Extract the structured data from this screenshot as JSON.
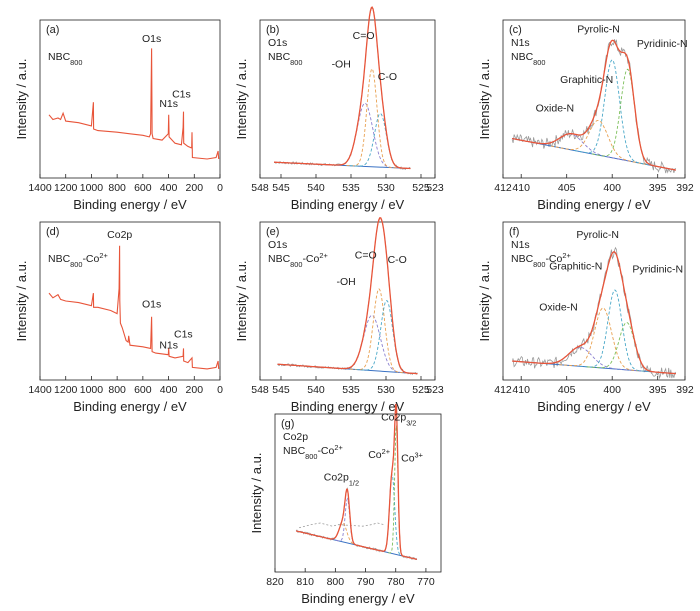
{
  "colors": {
    "survey": "#e8553a",
    "envelope": "#e8553a",
    "baseline": "#3a72c4",
    "raw": "#9a9a9a",
    "peak_palette": [
      "#8a7fd0",
      "#e8a050",
      "#4aa8c8",
      "#7cbf5a",
      "#d46fb0"
    ]
  },
  "common": {
    "ylabel": "Intensity / a.u.",
    "xlabel": "Binding energy / eV"
  },
  "chart_data": [
    {
      "id": "a",
      "type": "line",
      "panel_label": "(a)",
      "sample_text": "NBC",
      "sample_sub": "800",
      "sample_sup": "",
      "xlabel": "Binding energy / eV",
      "ylabel": "Intensity / a.u.",
      "xlim": [
        1400,
        0
      ],
      "ylim": [
        0,
        100
      ],
      "xticks": [
        1400,
        1200,
        1000,
        800,
        600,
        400,
        200,
        0
      ],
      "series": [
        {
          "x": [
            1330,
            1300,
            1260,
            1240,
            1220,
            1200,
            1100,
            1000,
            985,
            983,
            950,
            800,
            700,
            600,
            550,
            540,
            532,
            529,
            528,
            520,
            450,
            402,
            399,
            396,
            350,
            300,
            287,
            284,
            282,
            250,
            220,
            218,
            215,
            100,
            30,
            15,
            10
          ],
          "y": [
            40,
            37,
            38,
            37,
            41,
            36,
            35,
            33,
            48,
            31,
            30,
            29,
            28,
            27,
            26,
            28,
            82,
            40,
            28,
            25,
            24,
            28,
            40,
            26,
            22,
            21,
            32,
            42,
            22,
            20,
            19,
            29,
            13,
            12,
            13,
            17,
            12
          ]
        }
      ],
      "annotations": [
        {
          "text": "O1s",
          "x": 532,
          "y": 86
        },
        {
          "text": "N1s",
          "x": 399,
          "y": 45
        },
        {
          "text": "C1s",
          "x": 300,
          "y": 51
        }
      ]
    },
    {
      "id": "b",
      "type": "line",
      "panel_label": "(b)",
      "element_text": "O1s",
      "sample_text": "NBC",
      "sample_sub": "800",
      "sample_sup": "",
      "xlabel": "Binding energy / eV",
      "ylabel": "Intensity / a.u.",
      "xlim": [
        548,
        523
      ],
      "ylim": [
        0,
        100
      ],
      "xticks": [
        548,
        545,
        540,
        535,
        530,
        525,
        523
      ],
      "baseline": {
        "x": [
          546,
          526.5
        ],
        "y": [
          10,
          6
        ]
      },
      "fitted_peaks": [
        {
          "name": "-OH",
          "center": 533.0,
          "fwhm": 2.6,
          "height": 40
        },
        {
          "name": "C=O",
          "center": 532.0,
          "fwhm": 1.7,
          "height": 62
        },
        {
          "name": "C-O",
          "center": 530.8,
          "fwhm": 2.0,
          "height": 34
        }
      ],
      "xrange": [
        546,
        526.5
      ],
      "annotations": [
        {
          "text": "C=O",
          "x": 533.2,
          "y": 88
        },
        {
          "text": "-OH",
          "x": 536.4,
          "y": 70
        },
        {
          "text": "C-O",
          "x": 529.8,
          "y": 62
        }
      ]
    },
    {
      "id": "c",
      "type": "line",
      "panel_label": "(c)",
      "element_text": "N1s",
      "sample_text": "NBC",
      "sample_sub": "800",
      "sample_sup": "",
      "xlabel": "Binding energy / eV",
      "ylabel": "Intensity / a.u.",
      "xlim": [
        412,
        392
      ],
      "ylim": [
        0,
        100
      ],
      "xticks": [
        412,
        410,
        405,
        400,
        395,
        392
      ],
      "baseline": {
        "x": [
          411,
          393
        ],
        "y": [
          25,
          5
        ]
      },
      "fitted_peaks": [
        {
          "name": "Oxide-N",
          "center": 404.5,
          "fwhm": 3.0,
          "height": 10
        },
        {
          "name": "Graphitic-N",
          "center": 401.5,
          "fwhm": 2.4,
          "height": 22
        },
        {
          "name": "Pyrolic-N",
          "center": 400.0,
          "fwhm": 1.9,
          "height": 62
        },
        {
          "name": "Pyridinic-N",
          "center": 398.3,
          "fwhm": 1.8,
          "height": 58
        }
      ],
      "xrange": [
        411,
        393
      ],
      "noisy_raw": true,
      "annotations": [
        {
          "text": "Pyrolic-N",
          "x": 401.5,
          "y": 92
        },
        {
          "text": "Pyridinic-N",
          "x": 394.5,
          "y": 83
        },
        {
          "text": "Graphitic-N",
          "x": 402.8,
          "y": 60
        },
        {
          "text": "Oxide-N",
          "x": 406.3,
          "y": 42
        }
      ]
    },
    {
      "id": "d",
      "type": "line",
      "panel_label": "(d)",
      "sample_text": "NBC",
      "sample_sub": "800",
      "sample_sup": "-Co",
      "sample_sup2": "2+",
      "xlabel": "Binding energy / eV",
      "ylabel": "Intensity / a.u.",
      "xlim": [
        1400,
        0
      ],
      "ylim": [
        0,
        100
      ],
      "xticks": [
        1400,
        1200,
        1000,
        800,
        600,
        400,
        200,
        0
      ],
      "series": [
        {
          "x": [
            1330,
            1300,
            1260,
            1240,
            1200,
            1100,
            1000,
            985,
            983,
            950,
            850,
            800,
            785,
            781,
            779,
            775,
            760,
            730,
            715,
            710,
            700,
            600,
            540,
            532,
            528,
            500,
            402,
            399,
            396,
            350,
            287,
            284,
            282,
            250,
            218,
            215,
            100,
            30,
            15,
            10
          ],
          "y": [
            55,
            52,
            54,
            51,
            50,
            49,
            47,
            55,
            46,
            46,
            44,
            42,
            58,
            85,
            50,
            36,
            33,
            25,
            24,
            28,
            22,
            21,
            20,
            40,
            18,
            17,
            16,
            20,
            15,
            14,
            15,
            20,
            12,
            11,
            14,
            8,
            7,
            8,
            12,
            7
          ]
        }
      ],
      "annotations": [
        {
          "text": "Co2p",
          "x": 780,
          "y": 90
        },
        {
          "text": "O1s",
          "x": 532,
          "y": 46
        },
        {
          "text": "N1s",
          "x": 399,
          "y": 20
        },
        {
          "text": "C1s",
          "x": 285,
          "y": 27
        }
      ]
    },
    {
      "id": "e",
      "type": "line",
      "panel_label": "(e)",
      "element_text": "O1s",
      "sample_text": "NBC",
      "sample_sub": "800",
      "sample_sup": "-Co",
      "sample_sup2": "2+",
      "xlabel": "Binding energy / eV",
      "ylabel": "Intensity / a.u.",
      "xlim": [
        548,
        523
      ],
      "ylim": [
        0,
        100
      ],
      "xticks": [
        548,
        545,
        540,
        535,
        530,
        525,
        523
      ],
      "baseline": {
        "x": [
          545.5,
          525.5
        ],
        "y": [
          10,
          4
        ]
      },
      "fitted_peaks": [
        {
          "name": "-OH",
          "center": 532.0,
          "fwhm": 2.8,
          "height": 35
        },
        {
          "name": "C=O",
          "center": 531.0,
          "fwhm": 1.9,
          "height": 52
        },
        {
          "name": "C-O",
          "center": 529.9,
          "fwhm": 2.0,
          "height": 45
        }
      ],
      "xrange": [
        545.5,
        525.5
      ],
      "annotations": [
        {
          "text": "C=O",
          "x": 532.9,
          "y": 77
        },
        {
          "text": "-OH",
          "x": 535.7,
          "y": 60
        },
        {
          "text": "C-O",
          "x": 528.4,
          "y": 74
        }
      ]
    },
    {
      "id": "f",
      "type": "line",
      "panel_label": "(f)",
      "element_text": "N1s",
      "sample_text": "NBC",
      "sample_sub": "800",
      "sample_sup": "-Co",
      "sample_sup2": "2+",
      "xlabel": "Binding energy / eV",
      "ylabel": "Intensity / a.u.",
      "xlim": [
        412,
        392
      ],
      "ylim": [
        0,
        100
      ],
      "xticks": [
        412,
        410,
        405,
        400,
        395,
        392
      ],
      "baseline": {
        "x": [
          411,
          393
        ],
        "y": [
          12,
          4
        ]
      },
      "fitted_peaks": [
        {
          "name": "Oxide-N",
          "center": 403.5,
          "fwhm": 3.0,
          "height": 12
        },
        {
          "name": "Graphitic-N",
          "center": 401.0,
          "fwhm": 2.2,
          "height": 38
        },
        {
          "name": "Pyrolic-N",
          "center": 399.7,
          "fwhm": 1.8,
          "height": 50
        },
        {
          "name": "Pyridinic-N",
          "center": 398.4,
          "fwhm": 2.0,
          "height": 30
        }
      ],
      "xrange": [
        411,
        393
      ],
      "noisy_raw": true,
      "annotations": [
        {
          "text": "Pyrolic-N",
          "x": 401.6,
          "y": 90
        },
        {
          "text": "Graphitic-N",
          "x": 404.0,
          "y": 70
        },
        {
          "text": "Pyridinic-N",
          "x": 395.0,
          "y": 68
        },
        {
          "text": "Oxide-N",
          "x": 405.9,
          "y": 44
        }
      ]
    },
    {
      "id": "g",
      "type": "line",
      "panel_label": "(g)",
      "element_text": "Co2p",
      "sample_text": "NBC",
      "sample_sub": "800",
      "sample_sup": "-Co",
      "sample_sup2": "2+",
      "xlabel": "Binding energy / eV",
      "ylabel": "Intensity / a.u.",
      "xlim": [
        820,
        765
      ],
      "ylim": [
        0,
        100
      ],
      "xticks": [
        820,
        810,
        800,
        790,
        780,
        770
      ],
      "baseline": {
        "x": [
          813,
          773
        ],
        "y": [
          26,
          8
        ]
      },
      "fitted_peaks": [
        {
          "name": "Co2p1/2 main",
          "center": 796.0,
          "fwhm": 1.8,
          "height": 28
        },
        {
          "name": "Co2p1/2 sat",
          "center": 797.5,
          "fwhm": 3.0,
          "height": 12
        },
        {
          "name": "Co2+",
          "center": 781.2,
          "fwhm": 2.0,
          "height": 50
        },
        {
          "name": "Co3+",
          "center": 779.8,
          "fwhm": 1.3,
          "height": 82
        }
      ],
      "xrange": [
        813,
        773
      ],
      "satellites": [
        {
          "x": [
            812,
            808,
            805,
            803,
            801,
            799,
            791,
            788,
            786,
            784
          ],
          "y": [
            28,
            30,
            31,
            30,
            29,
            30,
            29,
            30,
            31,
            30
          ]
        }
      ],
      "annotations": [
        {
          "text": "Co2p",
          "sub": "3/2",
          "x": 779,
          "y": 96
        },
        {
          "text": "Co",
          "sup": "2+",
          "x": 785.5,
          "y": 72
        },
        {
          "text": "Co",
          "sup": "3+",
          "x": 774.6,
          "y": 70
        },
        {
          "text": "Co2p",
          "sub": "1/2",
          "x": 798,
          "y": 58
        }
      ]
    }
  ]
}
